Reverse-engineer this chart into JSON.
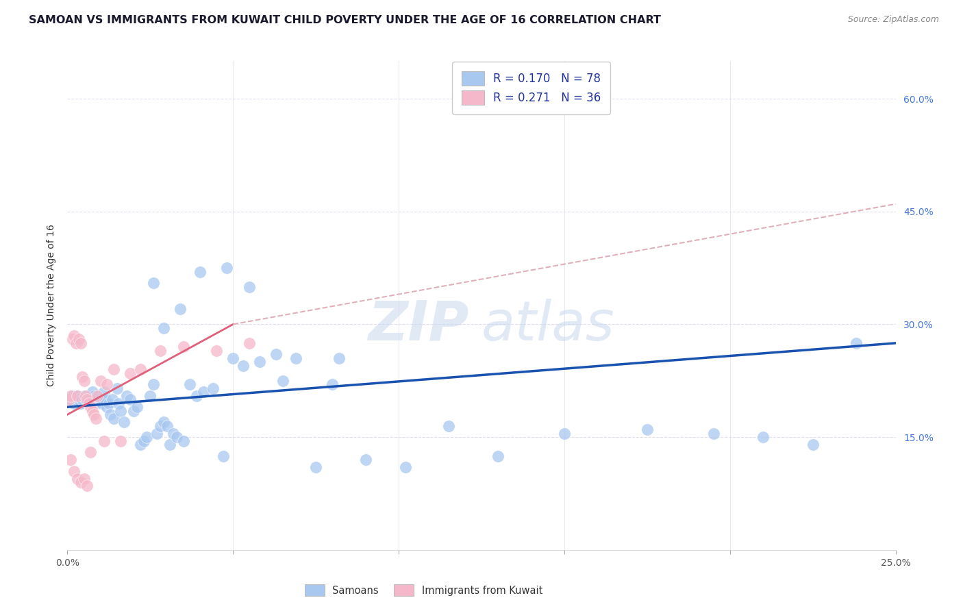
{
  "title": "SAMOAN VS IMMIGRANTS FROM KUWAIT CHILD POVERTY UNDER THE AGE OF 16 CORRELATION CHART",
  "source": "Source: ZipAtlas.com",
  "ylabel": "Child Poverty Under the Age of 16",
  "xlim": [
    0.0,
    25.0
  ],
  "ylim": [
    0.0,
    65.0
  ],
  "xticks": [
    0.0,
    5.0,
    10.0,
    15.0,
    20.0,
    25.0
  ],
  "yticks": [
    0.0,
    15.0,
    30.0,
    45.0,
    60.0
  ],
  "xtick_labels": [
    "0.0%",
    "",
    "",
    "",
    "",
    "25.0%"
  ],
  "ytick_labels": [
    "",
    "15.0%",
    "30.0%",
    "45.0%",
    "60.0%"
  ],
  "blue_color": "#A8C8F0",
  "pink_color": "#F5B8CA",
  "blue_line_color": "#1A52B0",
  "pink_line_color": "#E0607A",
  "pink_dash_color": "#E0B0BA",
  "background_color": "#FFFFFF",
  "grid_color": "#DDDDEE",
  "legend_R1": "R = 0.170",
  "legend_N1": "N = 78",
  "legend_R2": "R = 0.271",
  "legend_N2": "N = 36",
  "label1": "Samoans",
  "label2": "Immigrants from Kuwait",
  "blue_trend_x0": 0.0,
  "blue_trend_y0": 19.0,
  "blue_trend_x1": 25.0,
  "blue_trend_y1": 27.5,
  "pink_solid_x0": 0.0,
  "pink_solid_y0": 18.0,
  "pink_solid_x1": 5.0,
  "pink_solid_y1": 30.0,
  "pink_dash_x0": 5.0,
  "pink_dash_y0": 30.0,
  "pink_dash_x1": 25.0,
  "pink_dash_y1": 46.0,
  "blue_scatter_x": [
    0.1,
    0.15,
    0.2,
    0.25,
    0.3,
    0.35,
    0.4,
    0.45,
    0.5,
    0.55,
    0.6,
    0.65,
    0.7,
    0.75,
    0.8,
    0.85,
    0.9,
    0.95,
    1.0,
    1.05,
    1.1,
    1.15,
    1.2,
    1.25,
    1.3,
    1.35,
    1.4,
    1.5,
    1.55,
    1.6,
    1.7,
    1.8,
    1.9,
    2.0,
    2.1,
    2.2,
    2.3,
    2.4,
    2.5,
    2.6,
    2.7,
    2.8,
    2.9,
    3.0,
    3.1,
    3.2,
    3.3,
    3.5,
    3.7,
    3.9,
    4.1,
    4.4,
    4.7,
    5.0,
    5.3,
    5.8,
    6.3,
    6.9,
    7.5,
    8.2,
    9.0,
    10.2,
    11.5,
    13.0,
    15.0,
    17.5,
    19.5,
    21.0,
    22.5,
    23.8,
    2.6,
    2.9,
    3.4,
    4.0,
    4.8,
    5.5,
    6.5,
    8.0
  ],
  "blue_scatter_y": [
    20.0,
    20.5,
    19.5,
    20.0,
    20.5,
    20.0,
    19.5,
    20.0,
    20.5,
    20.0,
    20.0,
    20.5,
    20.0,
    21.0,
    20.5,
    19.5,
    20.0,
    20.5,
    20.0,
    19.5,
    21.0,
    20.0,
    19.0,
    19.5,
    18.0,
    20.0,
    17.5,
    21.5,
    19.5,
    18.5,
    17.0,
    20.5,
    20.0,
    18.5,
    19.0,
    14.0,
    14.5,
    15.0,
    20.5,
    22.0,
    15.5,
    16.5,
    17.0,
    16.5,
    14.0,
    15.5,
    15.0,
    14.5,
    22.0,
    20.5,
    21.0,
    21.5,
    12.5,
    25.5,
    24.5,
    25.0,
    26.0,
    25.5,
    11.0,
    25.5,
    12.0,
    11.0,
    16.5,
    12.5,
    15.5,
    16.0,
    15.5,
    15.0,
    14.0,
    27.5,
    35.5,
    29.5,
    32.0,
    37.0,
    37.5,
    35.0,
    22.5,
    22.0
  ],
  "pink_scatter_x": [
    0.05,
    0.1,
    0.15,
    0.2,
    0.25,
    0.3,
    0.35,
    0.4,
    0.45,
    0.5,
    0.55,
    0.6,
    0.65,
    0.7,
    0.75,
    0.8,
    0.85,
    0.9,
    1.0,
    1.1,
    1.2,
    1.4,
    1.6,
    1.9,
    2.2,
    2.8,
    3.5,
    4.5,
    5.5,
    0.1,
    0.2,
    0.3,
    0.4,
    0.5,
    0.6,
    0.7
  ],
  "pink_scatter_y": [
    20.0,
    20.5,
    28.0,
    28.5,
    27.5,
    20.5,
    28.0,
    27.5,
    23.0,
    22.5,
    20.5,
    20.0,
    19.5,
    19.0,
    18.5,
    18.0,
    17.5,
    20.5,
    22.5,
    14.5,
    22.0,
    24.0,
    14.5,
    23.5,
    24.0,
    26.5,
    27.0,
    26.5,
    27.5,
    12.0,
    10.5,
    9.5,
    9.0,
    9.5,
    8.5,
    13.0
  ],
  "title_fontsize": 11.5,
  "source_fontsize": 9,
  "axis_label_fontsize": 10,
  "tick_fontsize": 10,
  "legend_fontsize": 12
}
